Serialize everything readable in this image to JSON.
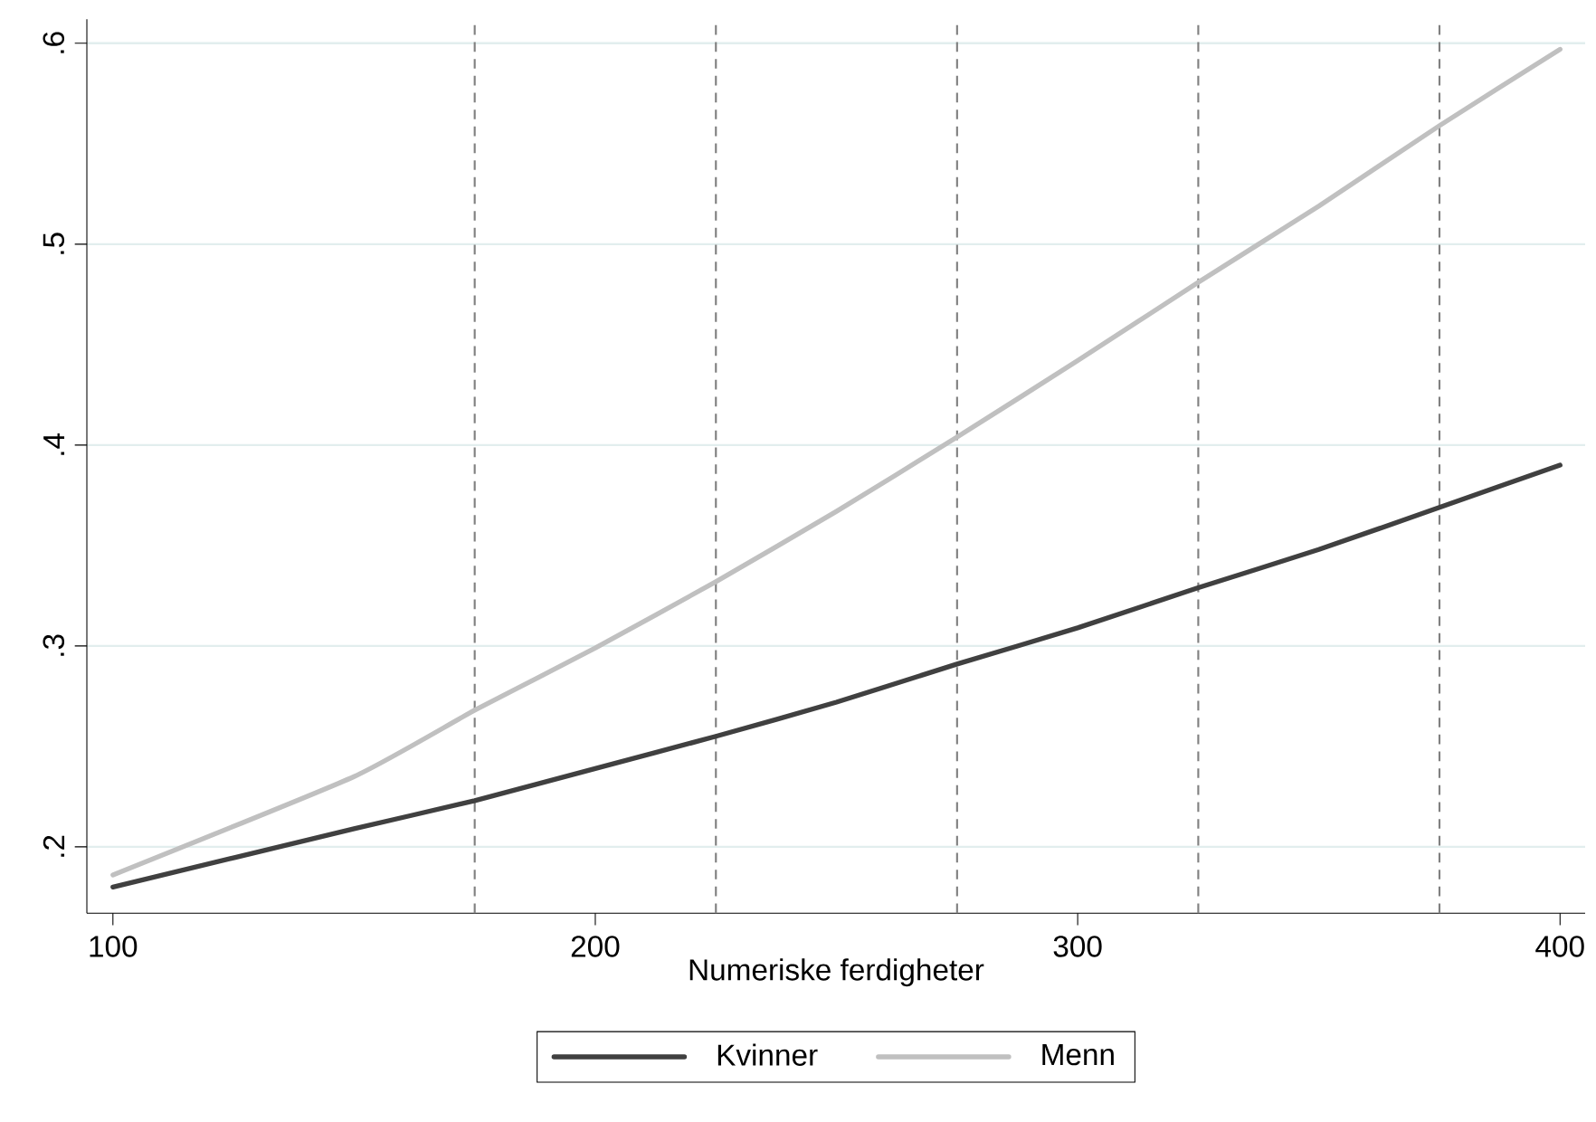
{
  "chart_data": {
    "type": "line",
    "xlabel": "Numeriske ferdigheter",
    "x": [
      100,
      150,
      175,
      200,
      225,
      250,
      275,
      300,
      325,
      350,
      375,
      400
    ],
    "series": [
      {
        "name": "Kvinner",
        "color": "#404040",
        "values": [
          0.18,
          0.209,
          0.223,
          0.239,
          0.255,
          0.272,
          0.291,
          0.309,
          0.329,
          0.348,
          0.369,
          0.39
        ]
      },
      {
        "name": "Menn",
        "color": "#c0c0c0",
        "values": [
          0.186,
          0.235,
          0.268,
          0.299,
          0.332,
          0.367,
          0.404,
          0.442,
          0.481,
          0.519,
          0.559,
          0.597
        ]
      }
    ],
    "xlim": [
      94.6,
      405.2
    ],
    "ylim": [
      0.167,
      0.612
    ],
    "xticks": [
      100,
      200,
      300,
      400
    ],
    "yticks": [
      {
        "value": 0.2,
        "label": ".2"
      },
      {
        "value": 0.3,
        "label": ".3"
      },
      {
        "value": 0.4,
        "label": ".4"
      },
      {
        "value": 0.5,
        "label": ".5"
      },
      {
        "value": 0.6,
        "label": ".6"
      }
    ],
    "ref_lines": [
      {
        "axis": "x",
        "value": 175,
        "color": "#808080",
        "line_style": "dashed"
      },
      {
        "axis": "x",
        "value": 225,
        "color": "#808080",
        "line_style": "dashed"
      },
      {
        "axis": "x",
        "value": 275,
        "color": "#808080",
        "line_style": "dashed"
      },
      {
        "axis": "x",
        "value": 325,
        "color": "#808080",
        "line_style": "dashed"
      },
      {
        "axis": "x",
        "value": 375,
        "color": "#808080",
        "line_style": "dashed"
      }
    ],
    "grid": "y",
    "legend": "bottom",
    "marker": "none",
    "line_style": "solid"
  }
}
